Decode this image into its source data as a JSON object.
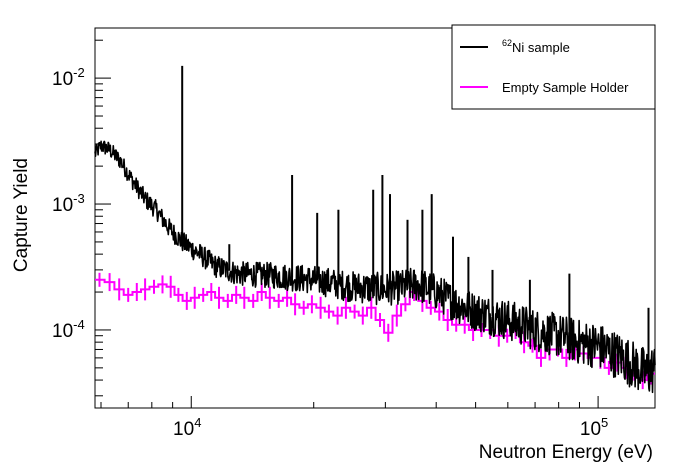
{
  "chart_data": {
    "type": "line",
    "xlabel": "Neutron Energy (eV)",
    "ylabel": "Capture Yield",
    "x_scale": "log",
    "y_scale": "log",
    "xlim": [
      5800,
      138000
    ],
    "ylim": [
      2.4e-05,
      0.025
    ],
    "grid": false,
    "legend_position": "top-right",
    "x_ticks": [
      {
        "value": 10000,
        "base": "10",
        "exp": "4"
      },
      {
        "value": 100000,
        "base": "10",
        "exp": "5"
      }
    ],
    "y_ticks": [
      {
        "value": 0.0001,
        "base": "10",
        "exp": "-4"
      },
      {
        "value": 0.001,
        "base": "10",
        "exp": "-3"
      },
      {
        "value": 0.01,
        "base": "10",
        "exp": "-2"
      }
    ],
    "series": [
      {
        "name": "Ni sample",
        "name_superscript": "62",
        "color": "#000000",
        "style": "noisy-line",
        "baseline": [
          [
            5800,
            0.0025
          ],
          [
            6000,
            0.0029
          ],
          [
            6300,
            0.0027
          ],
          [
            6700,
            0.0022
          ],
          [
            7200,
            0.0015
          ],
          [
            7700,
            0.0011
          ],
          [
            8200,
            0.0009
          ],
          [
            8800,
            0.00065
          ],
          [
            9500,
            0.0005
          ],
          [
            10500,
            0.0004
          ],
          [
            11500,
            0.00032
          ],
          [
            13000,
            0.00028
          ],
          [
            16000,
            0.00027
          ],
          [
            20000,
            0.00025
          ],
          [
            25000,
            0.00022
          ],
          [
            30000,
            0.00021
          ],
          [
            36000,
            0.00023
          ],
          [
            40000,
            0.0002
          ],
          [
            45000,
            0.00016
          ],
          [
            50000,
            0.00014
          ],
          [
            60000,
            0.00012
          ],
          [
            70000,
            0.0001
          ],
          [
            80000,
            9e-05
          ],
          [
            90000,
            8e-05
          ],
          [
            100000,
            7.5e-05
          ],
          [
            115000,
            6e-05
          ],
          [
            125000,
            5e-05
          ],
          [
            132000,
            4.5e-05
          ],
          [
            138000,
            5e-05
          ]
        ],
        "peaks": [
          [
            8300,
            0.00085
          ],
          [
            9500,
            0.0125
          ],
          [
            12400,
            0.00048
          ],
          [
            17700,
            0.0017
          ],
          [
            20400,
            0.00085
          ],
          [
            23000,
            0.0009
          ],
          [
            28000,
            0.0013
          ],
          [
            29500,
            0.0017
          ],
          [
            30800,
            0.0012
          ],
          [
            34000,
            0.00075
          ],
          [
            37000,
            0.0009
          ],
          [
            39000,
            0.0012
          ],
          [
            44000,
            0.00055
          ],
          [
            48000,
            0.00038
          ],
          [
            55000,
            0.0003
          ],
          [
            68000,
            0.00025
          ],
          [
            85000,
            0.00028
          ],
          [
            133000,
            0.00015
          ]
        ]
      },
      {
        "name": "Empty Sample Holder",
        "color": "#ff00ff",
        "style": "step-with-errors",
        "points": [
          [
            5950,
            0.00025
          ],
          [
            6300,
            0.00024
          ],
          [
            6650,
            0.00021
          ],
          [
            7000,
            0.00019
          ],
          [
            7350,
            0.0002
          ],
          [
            7700,
            0.00021
          ],
          [
            8100,
            0.00022
          ],
          [
            8500,
            0.00023
          ],
          [
            8900,
            0.00022
          ],
          [
            9300,
            0.00019
          ],
          [
            9750,
            0.00017
          ],
          [
            10200,
            0.00018
          ],
          [
            10700,
            0.00019
          ],
          [
            11200,
            0.0002
          ],
          [
            11700,
            0.00018
          ],
          [
            12300,
            0.00017
          ],
          [
            12900,
            0.00019
          ],
          [
            13500,
            0.00018
          ],
          [
            14200,
            0.00017
          ],
          [
            14900,
            0.0002
          ],
          [
            15600,
            0.00018
          ],
          [
            16400,
            0.00017
          ],
          [
            17200,
            0.00018
          ],
          [
            18000,
            0.00016
          ],
          [
            18900,
            0.00015
          ],
          [
            19800,
            0.00016
          ],
          [
            20800,
            0.00015
          ],
          [
            21800,
            0.00014
          ],
          [
            22900,
            0.00013
          ],
          [
            24000,
            0.00015
          ],
          [
            25200,
            0.00014
          ],
          [
            26400,
            0.00013
          ],
          [
            27700,
            0.00015
          ],
          [
            29100,
            0.00012
          ],
          [
            30500,
            9.5e-05
          ],
          [
            32000,
            0.00013
          ],
          [
            33600,
            0.00016
          ],
          [
            35300,
            0.0002
          ],
          [
            37000,
            0.00017
          ],
          [
            38800,
            0.00015
          ],
          [
            40700,
            0.00014
          ],
          [
            42700,
            0.00012
          ],
          [
            44800,
            0.00011
          ],
          [
            47000,
            0.00011
          ],
          [
            49300,
            0.0001
          ],
          [
            51700,
            0.0001
          ],
          [
            54300,
            0.0001
          ],
          [
            57000,
            9e-05
          ],
          [
            59800,
            9e-05
          ],
          [
            62700,
            0.0001
          ],
          [
            65800,
            8e-05
          ],
          [
            69000,
            7.5e-05
          ],
          [
            72400,
            6e-05
          ],
          [
            76000,
            7e-05
          ],
          [
            79700,
            7e-05
          ],
          [
            83600,
            6e-05
          ],
          [
            87700,
            7e-05
          ],
          [
            92000,
            6.5e-05
          ],
          [
            96500,
            6e-05
          ],
          [
            101300,
            6e-05
          ],
          [
            106300,
            5e-05
          ],
          [
            111500,
            5.5e-05
          ],
          [
            117000,
            5e-05
          ],
          [
            122700,
            4.5e-05
          ],
          [
            128700,
            4e-05
          ],
          [
            135000,
            4.5e-05
          ]
        ]
      }
    ]
  }
}
